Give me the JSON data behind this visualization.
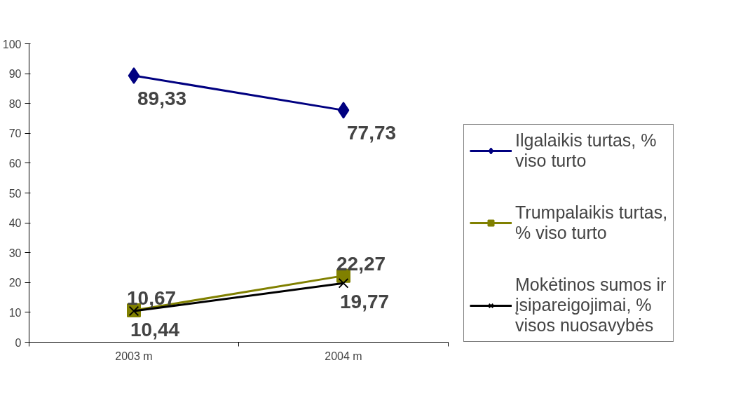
{
  "chart_data": {
    "type": "line",
    "categories": [
      "2003 m",
      "2004 m"
    ],
    "series": [
      {
        "name": "Ilgalaikis turtas, % viso turto",
        "color": "#000080",
        "marker": "diamond",
        "values": [
          89.33,
          77.73
        ],
        "value_labels": [
          "89,33",
          "77,73"
        ]
      },
      {
        "name": "Trumpalaikis turtas, % viso turto",
        "color": "#808000",
        "marker": "square",
        "values": [
          10.67,
          22.27
        ],
        "value_labels": [
          "10,67",
          "22,27"
        ]
      },
      {
        "name": "Mokėtinos sumos ir įsipareigojimai, % visos nuosavybės",
        "color": "#000000",
        "marker": "cross",
        "values": [
          10.44,
          19.77
        ],
        "value_labels": [
          "10,44",
          "19,77"
        ]
      }
    ],
    "ylim": [
      0,
      100
    ],
    "yticks": [
      0,
      10,
      20,
      30,
      40,
      50,
      60,
      70,
      80,
      90,
      100
    ],
    "grid": false,
    "legend": "right"
  }
}
